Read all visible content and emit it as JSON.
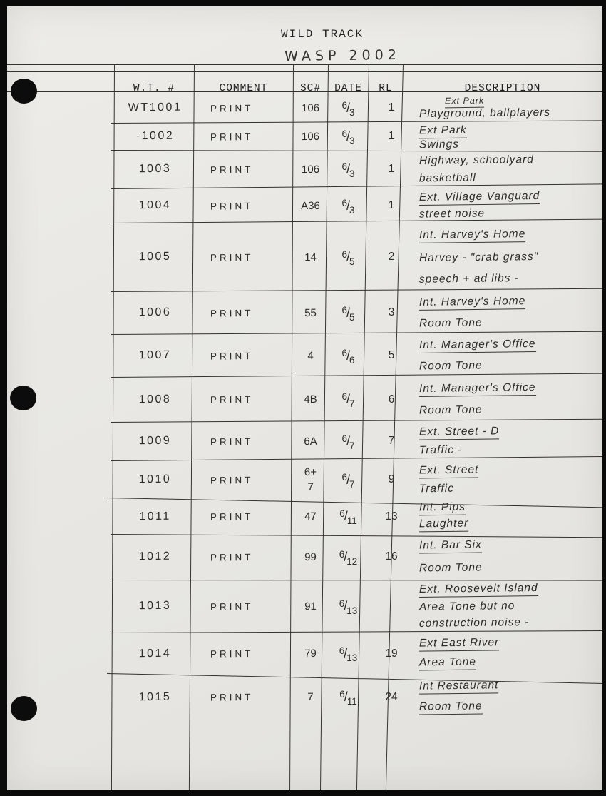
{
  "page": {
    "title": "WILD TRACK",
    "subtitle": "WASP 2002"
  },
  "table": {
    "columns": [
      "W.T. #",
      "COMMENT",
      "SC#",
      "DATE",
      "RL",
      "DESCRIPTION"
    ],
    "rows": [
      {
        "wt": "WT1001",
        "comment": "PRINT",
        "sc": "106",
        "date": "6/3",
        "rl": "1",
        "desc": [
          {
            "text": "Ext Park",
            "u": true,
            "small": true
          },
          {
            "text": "Playground, ballplayers",
            "u": false
          }
        ]
      },
      {
        "wt": "·1002",
        "comment": "PRINT",
        "sc": "106",
        "date": "6/3",
        "rl": "1",
        "desc": [
          {
            "text": "Ext Park",
            "u": true
          },
          {
            "text": "Swings",
            "u": false
          }
        ]
      },
      {
        "wt": "1003",
        "comment": "PRINT",
        "sc": "106",
        "date": "6/3",
        "rl": "1",
        "desc": [
          {
            "text": "Highway, schoolyard",
            "u": false
          },
          {
            "text": "basketball",
            "u": false
          }
        ]
      },
      {
        "wt": "1004",
        "comment": "PRINT",
        "sc": "A36",
        "date": "6/3",
        "rl": "1",
        "desc": [
          {
            "text": "Ext. Village Vanguard",
            "u": true
          },
          {
            "text": "street noise",
            "u": false
          }
        ]
      },
      {
        "wt": "1005",
        "comment": "PRINT",
        "sc": "14",
        "date": "6/5",
        "rl": "2",
        "desc": [
          {
            "text": "Int. Harvey's Home",
            "u": true
          },
          {
            "text": "Harvey - \"crab grass\"",
            "u": false
          },
          {
            "text": "speech + ad libs -",
            "u": false
          }
        ]
      },
      {
        "wt": "1006",
        "comment": "PRINT",
        "sc": "55",
        "date": "6/5",
        "rl": "3",
        "desc": [
          {
            "text": "Int. Harvey's Home",
            "u": true
          },
          {
            "text": "Room Tone",
            "u": false
          }
        ]
      },
      {
        "wt": "1007",
        "comment": "PRINT",
        "sc": "4",
        "date": "6/6",
        "rl": "5",
        "desc": [
          {
            "text": "Int. Manager's Office",
            "u": true
          },
          {
            "text": "Room Tone",
            "u": false
          }
        ]
      },
      {
        "wt": "1008",
        "comment": "PRINT",
        "sc": "4B",
        "date": "6/7",
        "rl": "6",
        "desc": [
          {
            "text": "Int. Manager's Office",
            "u": true
          },
          {
            "text": "Room Tone",
            "u": false
          }
        ]
      },
      {
        "wt": "1009",
        "comment": "PRINT",
        "sc": "6A",
        "date": "6/7",
        "rl": "7",
        "desc": [
          {
            "text": "Ext. Street - D",
            "u": true
          },
          {
            "text": "Traffic -",
            "u": false
          }
        ]
      },
      {
        "wt": "1010",
        "comment": "PRINT",
        "sc": "6+\n7",
        "date": "6/7",
        "rl": "9",
        "desc": [
          {
            "text": "Ext. Street",
            "u": true
          },
          {
            "text": "Traffic",
            "u": false
          }
        ]
      },
      {
        "wt": "1011",
        "comment": "PRINT",
        "sc": "47",
        "date": "6/11",
        "rl": "13",
        "desc": [
          {
            "text": "Int. Pips",
            "u": true
          },
          {
            "text": "Laughter",
            "u": true
          }
        ]
      },
      {
        "wt": "1012",
        "comment": "PRINT",
        "sc": "99",
        "date": "6/12",
        "rl": "16",
        "desc": [
          {
            "text": "Int. Bar Six",
            "u": true
          },
          {
            "text": "Room Tone",
            "u": false
          }
        ]
      },
      {
        "wt": "1013",
        "comment": "PRINT",
        "sc": "91",
        "date": "6/13",
        "rl": "",
        "desc": [
          {
            "text": "Ext. Roosevelt Island",
            "u": true
          },
          {
            "text": "Area Tone but no",
            "u": false
          },
          {
            "text": "construction noise -",
            "u": false
          }
        ]
      },
      {
        "wt": "1014",
        "comment": "PRINT",
        "sc": "79",
        "date": "6/13",
        "rl": "19",
        "desc": [
          {
            "text": "Ext East River",
            "u": true
          },
          {
            "text": "Area Tone",
            "u": true
          }
        ]
      },
      {
        "wt": "1015",
        "comment": "PRINT",
        "sc": "7",
        "date": "6/11",
        "rl": "24",
        "desc": [
          {
            "text": "Int Restaurant",
            "u": true
          },
          {
            "text": "Room Tone",
            "u": true
          }
        ]
      }
    ]
  },
  "colors": {
    "paper": "#e9e8e4",
    "ink": "#2e2c29",
    "rule": "#383632",
    "scan_edge": "#0a0a0a"
  }
}
